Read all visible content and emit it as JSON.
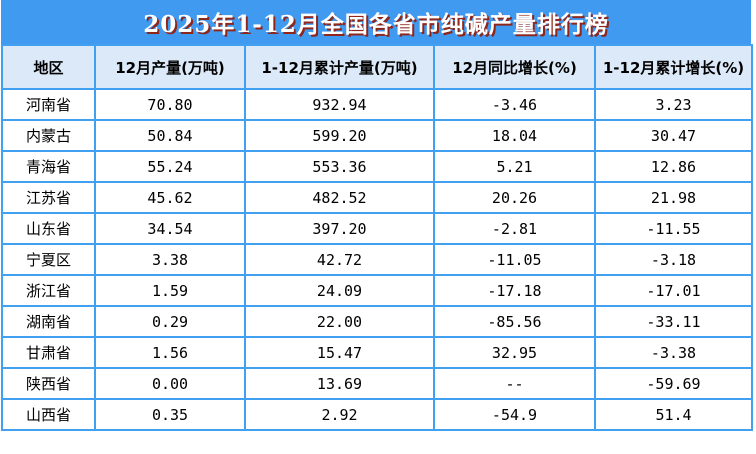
{
  "title": "2025年1-12月全国各省市纯碱产量排行榜",
  "colors": {
    "title_bar": "#409af0",
    "title_text": "#ffffff",
    "title_shadow": "#8f261c",
    "header_bg": "#dbe9f8",
    "border": "#41a0f0",
    "body_text": "#000000"
  },
  "chart_data": {
    "type": "table",
    "title": "2025年1-12月全国各省市纯碱产量排行榜",
    "columns": [
      "地区",
      "12月产量(万吨)",
      "1-12月累计产量(万吨)",
      "12月同比增长(%)",
      "1-12月累计增长(%)"
    ],
    "rows": [
      [
        "河南省",
        "70.80",
        "932.94",
        "-3.46",
        "3.23"
      ],
      [
        "内蒙古",
        "50.84",
        "599.20",
        "18.04",
        "30.47"
      ],
      [
        "青海省",
        "55.24",
        "553.36",
        "5.21",
        "12.86"
      ],
      [
        "江苏省",
        "45.62",
        "482.52",
        "20.26",
        "21.98"
      ],
      [
        "山东省",
        "34.54",
        "397.20",
        "-2.81",
        "-11.55"
      ],
      [
        "宁夏区",
        "3.38",
        "42.72",
        "-11.05",
        "-3.18"
      ],
      [
        "浙江省",
        "1.59",
        "24.09",
        "-17.18",
        "-17.01"
      ],
      [
        "湖南省",
        "0.29",
        "22.00",
        "-85.56",
        "-33.11"
      ],
      [
        "甘肃省",
        "1.56",
        "15.47",
        "32.95",
        "-3.38"
      ],
      [
        "陕西省",
        "0.00",
        "13.69",
        "--",
        "-59.69"
      ],
      [
        "山西省",
        "0.35",
        "2.92",
        "-54.9",
        "51.4"
      ]
    ]
  }
}
